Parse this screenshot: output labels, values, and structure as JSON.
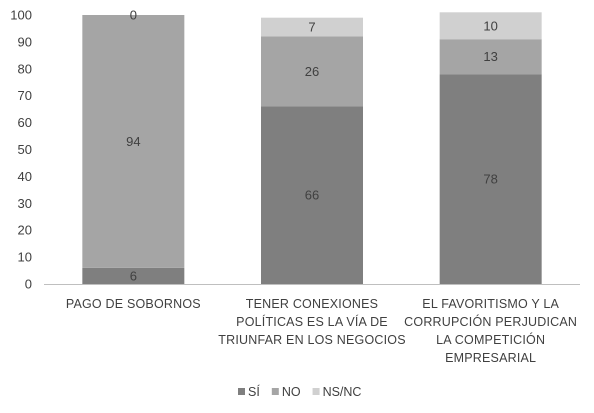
{
  "chart_data": {
    "type": "bar",
    "stacked": true,
    "title": "",
    "xlabel": "",
    "ylabel": "",
    "ylim": [
      0,
      100
    ],
    "yticks": [
      0,
      10,
      20,
      30,
      40,
      50,
      60,
      70,
      80,
      90,
      100
    ],
    "grid": false,
    "legend_position": "bottom",
    "categories": [
      [
        "PAGO DE SOBORNOS"
      ],
      [
        "TENER CONEXIONES",
        "POLÍTICAS ES LA VÍA DE",
        "TRIUNFAR EN LOS NEGOCIOS"
      ],
      [
        "EL FAVORITISMO Y LA",
        "CORRUPCIÓN PERJUDICAN",
        "LA COMPETICIÓN",
        "EMPRESARIAL"
      ]
    ],
    "series": [
      {
        "name": "SÍ",
        "color": "#7f7f7f",
        "values": [
          6,
          66,
          78
        ]
      },
      {
        "name": "NO",
        "color": "#a5a5a5",
        "values": [
          94,
          26,
          13
        ]
      },
      {
        "name": "NS/NC",
        "color": "#d0d0d0",
        "values": [
          0,
          7,
          10
        ]
      }
    ]
  }
}
